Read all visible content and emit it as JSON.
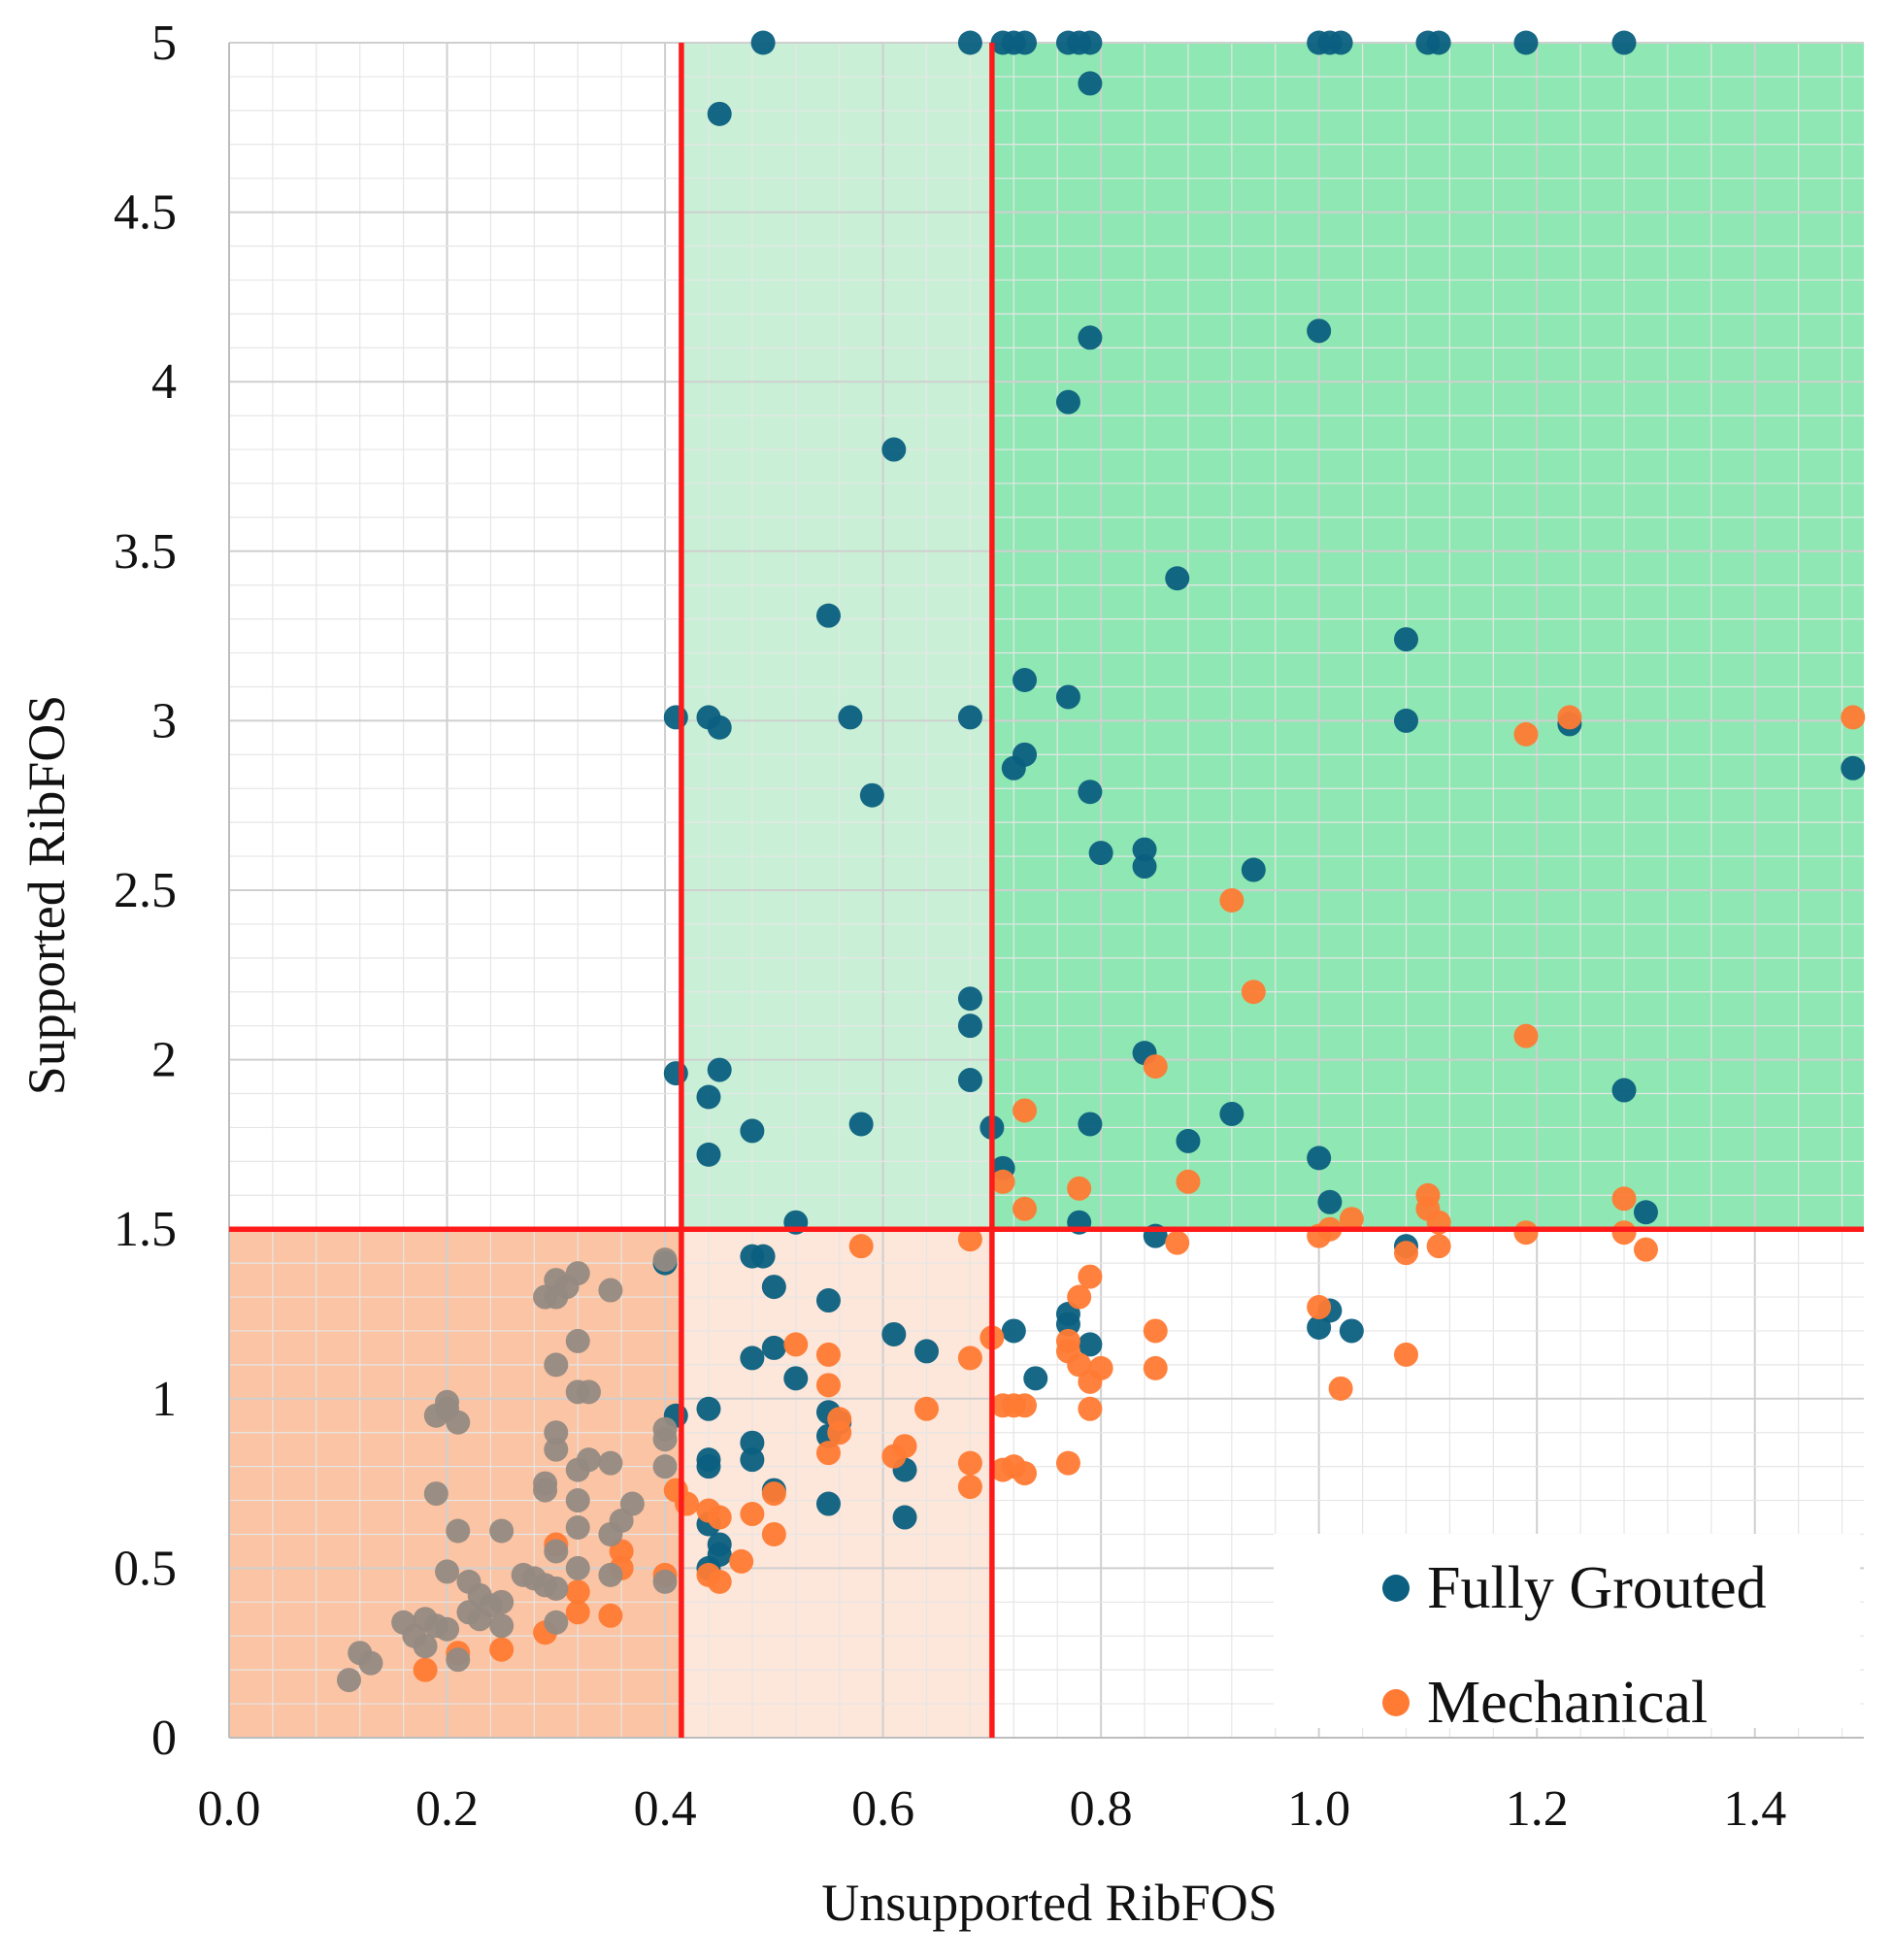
{
  "chart_data": {
    "type": "scatter",
    "xlabel": "Unsupported RibFOS",
    "ylabel": "Supported RibFOS",
    "xlim": [
      0.0,
      1.5
    ],
    "ylim": [
      0,
      5
    ],
    "xticks": [
      "0.0",
      "0.2",
      "0.4",
      "0.6",
      "0.8",
      "1.0",
      "1.2",
      "1.4"
    ],
    "yticks": [
      "0",
      "0.5",
      "1",
      "1.5",
      "2",
      "2.5",
      "3",
      "3.5",
      "4",
      "4.5",
      "5"
    ],
    "grid": true,
    "legend_position": "bottom-right",
    "thresholds": {
      "x": [
        0.415,
        0.7
      ],
      "y": 1.5
    },
    "threshold_color": "#ff1a1a",
    "regions": [
      {
        "x": [
          0.415,
          0.7
        ],
        "y": [
          1.5,
          5
        ],
        "color": "#c9f0d6"
      },
      {
        "x": [
          0.7,
          1.5
        ],
        "y": [
          1.5,
          5
        ],
        "color": "#8fe8b3"
      },
      {
        "x": [
          0.0,
          0.415
        ],
        "y": [
          0,
          1.5
        ],
        "color": "#fbc4a4"
      },
      {
        "x": [
          0.415,
          0.7
        ],
        "y": [
          0,
          1.5
        ],
        "color": "#fde6da"
      }
    ],
    "series": [
      {
        "name": "Fully Grouted",
        "color": "#0b5f80",
        "points": [
          [
            0.49,
            5.0
          ],
          [
            0.68,
            5.0
          ],
          [
            0.71,
            5.0
          ],
          [
            0.72,
            5.0
          ],
          [
            0.73,
            5.0
          ],
          [
            0.77,
            5.0
          ],
          [
            0.78,
            5.0
          ],
          [
            0.79,
            5.0
          ],
          [
            1.0,
            5.0
          ],
          [
            1.01,
            5.0
          ],
          [
            1.02,
            5.0
          ],
          [
            1.1,
            5.0
          ],
          [
            1.11,
            5.0
          ],
          [
            1.19,
            5.0
          ],
          [
            1.28,
            5.0
          ],
          [
            0.79,
            4.88
          ],
          [
            0.45,
            4.79
          ],
          [
            0.79,
            4.13
          ],
          [
            1.0,
            4.15
          ],
          [
            0.77,
            3.94
          ],
          [
            0.61,
            3.8
          ],
          [
            0.87,
            3.42
          ],
          [
            0.55,
            3.31
          ],
          [
            1.08,
            3.24
          ],
          [
            0.73,
            3.12
          ],
          [
            0.77,
            3.07
          ],
          [
            0.41,
            3.01
          ],
          [
            0.44,
            3.01
          ],
          [
            0.45,
            2.98
          ],
          [
            0.57,
            3.01
          ],
          [
            0.68,
            3.01
          ],
          [
            1.08,
            3.0
          ],
          [
            1.23,
            2.99
          ],
          [
            1.49,
            2.86
          ],
          [
            0.73,
            2.9
          ],
          [
            0.72,
            2.86
          ],
          [
            0.59,
            2.78
          ],
          [
            0.79,
            2.79
          ],
          [
            0.8,
            2.61
          ],
          [
            0.84,
            2.62
          ],
          [
            0.84,
            2.57
          ],
          [
            0.94,
            2.56
          ],
          [
            0.68,
            2.18
          ],
          [
            0.68,
            2.1
          ],
          [
            0.84,
            2.02
          ],
          [
            0.41,
            1.96
          ],
          [
            0.45,
            1.97
          ],
          [
            0.68,
            1.94
          ],
          [
            0.44,
            1.89
          ],
          [
            1.28,
            1.91
          ],
          [
            0.92,
            1.84
          ],
          [
            0.48,
            1.79
          ],
          [
            0.58,
            1.81
          ],
          [
            0.7,
            1.8
          ],
          [
            0.79,
            1.81
          ],
          [
            0.88,
            1.76
          ],
          [
            0.44,
            1.72
          ],
          [
            1.0,
            1.71
          ],
          [
            0.71,
            1.68
          ],
          [
            1.01,
            1.58
          ],
          [
            1.3,
            1.55
          ],
          [
            0.52,
            1.52
          ],
          [
            0.78,
            1.52
          ],
          [
            0.85,
            1.48
          ],
          [
            1.08,
            1.45
          ],
          [
            0.4,
            1.4
          ],
          [
            0.48,
            1.42
          ],
          [
            0.49,
            1.42
          ],
          [
            0.5,
            1.33
          ],
          [
            0.55,
            1.29
          ],
          [
            0.77,
            1.25
          ],
          [
            0.77,
            1.22
          ],
          [
            0.72,
            1.2
          ],
          [
            1.01,
            1.26
          ],
          [
            1.0,
            1.21
          ],
          [
            1.03,
            1.2
          ],
          [
            0.61,
            1.19
          ],
          [
            0.79,
            1.16
          ],
          [
            0.5,
            1.15
          ],
          [
            0.48,
            1.12
          ],
          [
            0.64,
            1.14
          ],
          [
            0.52,
            1.06
          ],
          [
            0.74,
            1.06
          ],
          [
            0.44,
            0.97
          ],
          [
            0.41,
            0.95
          ],
          [
            0.55,
            0.96
          ],
          [
            0.56,
            0.93
          ],
          [
            0.55,
            0.89
          ],
          [
            0.48,
            0.87
          ],
          [
            0.44,
            0.82
          ],
          [
            0.44,
            0.8
          ],
          [
            0.48,
            0.82
          ],
          [
            0.62,
            0.79
          ],
          [
            0.5,
            0.73
          ],
          [
            0.55,
            0.69
          ],
          [
            0.44,
            0.63
          ],
          [
            0.62,
            0.65
          ],
          [
            0.45,
            0.57
          ],
          [
            0.45,
            0.54
          ],
          [
            0.44,
            0.5
          ]
        ]
      },
      {
        "name": "Mechanical",
        "color": "#ff7a33",
        "points": [
          [
            1.49,
            3.01
          ],
          [
            1.23,
            3.01
          ],
          [
            1.19,
            2.96
          ],
          [
            0.92,
            2.47
          ],
          [
            0.94,
            2.2
          ],
          [
            1.19,
            2.07
          ],
          [
            0.85,
            1.98
          ],
          [
            0.73,
            1.85
          ],
          [
            0.71,
            1.64
          ],
          [
            0.78,
            1.62
          ],
          [
            0.88,
            1.64
          ],
          [
            1.1,
            1.6
          ],
          [
            1.1,
            1.56
          ],
          [
            1.28,
            1.59
          ],
          [
            0.73,
            1.56
          ],
          [
            1.03,
            1.53
          ],
          [
            1.11,
            1.52
          ],
          [
            0.68,
            1.47
          ],
          [
            0.58,
            1.45
          ],
          [
            0.87,
            1.46
          ],
          [
            1.0,
            1.48
          ],
          [
            1.01,
            1.5
          ],
          [
            1.08,
            1.43
          ],
          [
            1.11,
            1.45
          ],
          [
            1.19,
            1.49
          ],
          [
            1.28,
            1.49
          ],
          [
            1.3,
            1.44
          ],
          [
            0.79,
            1.36
          ],
          [
            0.78,
            1.3
          ],
          [
            1.0,
            1.27
          ],
          [
            0.85,
            1.2
          ],
          [
            0.7,
            1.18
          ],
          [
            0.77,
            1.17
          ],
          [
            0.77,
            1.14
          ],
          [
            0.52,
            1.16
          ],
          [
            0.55,
            1.13
          ],
          [
            0.68,
            1.12
          ],
          [
            1.08,
            1.13
          ],
          [
            0.78,
            1.1
          ],
          [
            0.8,
            1.09
          ],
          [
            0.85,
            1.09
          ],
          [
            0.79,
            1.05
          ],
          [
            0.55,
            1.04
          ],
          [
            1.02,
            1.03
          ],
          [
            0.71,
            0.98
          ],
          [
            0.72,
            0.98
          ],
          [
            0.73,
            0.98
          ],
          [
            0.79,
            0.97
          ],
          [
            0.64,
            0.97
          ],
          [
            0.56,
            0.94
          ],
          [
            0.56,
            0.9
          ],
          [
            0.62,
            0.86
          ],
          [
            0.61,
            0.83
          ],
          [
            0.55,
            0.84
          ],
          [
            0.68,
            0.81
          ],
          [
            0.77,
            0.81
          ],
          [
            0.71,
            0.79
          ],
          [
            0.72,
            0.8
          ],
          [
            0.73,
            0.78
          ],
          [
            0.68,
            0.74
          ],
          [
            0.41,
            0.73
          ],
          [
            0.42,
            0.69
          ],
          [
            0.44,
            0.67
          ],
          [
            0.45,
            0.65
          ],
          [
            0.48,
            0.66
          ],
          [
            0.5,
            0.72
          ],
          [
            0.5,
            0.6
          ],
          [
            0.3,
            0.57
          ],
          [
            0.36,
            0.55
          ],
          [
            0.36,
            0.5
          ],
          [
            0.47,
            0.52
          ],
          [
            0.4,
            0.48
          ],
          [
            0.44,
            0.48
          ],
          [
            0.45,
            0.46
          ],
          [
            0.32,
            0.43
          ],
          [
            0.32,
            0.37
          ],
          [
            0.35,
            0.36
          ],
          [
            0.29,
            0.31
          ],
          [
            0.25,
            0.26
          ],
          [
            0.21,
            0.25
          ],
          [
            0.18,
            0.2
          ]
        ]
      },
      {
        "name": "",
        "color": "#958a82",
        "points": [
          [
            0.3,
            1.35
          ],
          [
            0.32,
            1.37
          ],
          [
            0.31,
            1.33
          ],
          [
            0.35,
            1.32
          ],
          [
            0.29,
            1.3
          ],
          [
            0.3,
            1.3
          ],
          [
            0.4,
            1.41
          ],
          [
            0.32,
            1.17
          ],
          [
            0.3,
            1.1
          ],
          [
            0.32,
            1.02
          ],
          [
            0.33,
            1.02
          ],
          [
            0.2,
            0.99
          ],
          [
            0.2,
            0.97
          ],
          [
            0.19,
            0.95
          ],
          [
            0.21,
            0.93
          ],
          [
            0.3,
            0.9
          ],
          [
            0.3,
            0.85
          ],
          [
            0.4,
            0.91
          ],
          [
            0.4,
            0.88
          ],
          [
            0.33,
            0.82
          ],
          [
            0.35,
            0.81
          ],
          [
            0.32,
            0.79
          ],
          [
            0.4,
            0.8
          ],
          [
            0.29,
            0.75
          ],
          [
            0.29,
            0.73
          ],
          [
            0.19,
            0.72
          ],
          [
            0.32,
            0.7
          ],
          [
            0.37,
            0.69
          ],
          [
            0.36,
            0.64
          ],
          [
            0.21,
            0.61
          ],
          [
            0.25,
            0.61
          ],
          [
            0.32,
            0.62
          ],
          [
            0.35,
            0.6
          ],
          [
            0.3,
            0.55
          ],
          [
            0.32,
            0.5
          ],
          [
            0.2,
            0.49
          ],
          [
            0.22,
            0.46
          ],
          [
            0.27,
            0.48
          ],
          [
            0.28,
            0.47
          ],
          [
            0.29,
            0.45
          ],
          [
            0.35,
            0.48
          ],
          [
            0.3,
            0.44
          ],
          [
            0.23,
            0.42
          ],
          [
            0.24,
            0.39
          ],
          [
            0.25,
            0.4
          ],
          [
            0.22,
            0.37
          ],
          [
            0.23,
            0.35
          ],
          [
            0.18,
            0.35
          ],
          [
            0.16,
            0.34
          ],
          [
            0.19,
            0.33
          ],
          [
            0.2,
            0.32
          ],
          [
            0.25,
            0.33
          ],
          [
            0.3,
            0.34
          ],
          [
            0.17,
            0.3
          ],
          [
            0.18,
            0.27
          ],
          [
            0.21,
            0.23
          ],
          [
            0.12,
            0.25
          ],
          [
            0.13,
            0.22
          ],
          [
            0.11,
            0.17
          ],
          [
            0.4,
            0.46
          ]
        ]
      }
    ]
  }
}
